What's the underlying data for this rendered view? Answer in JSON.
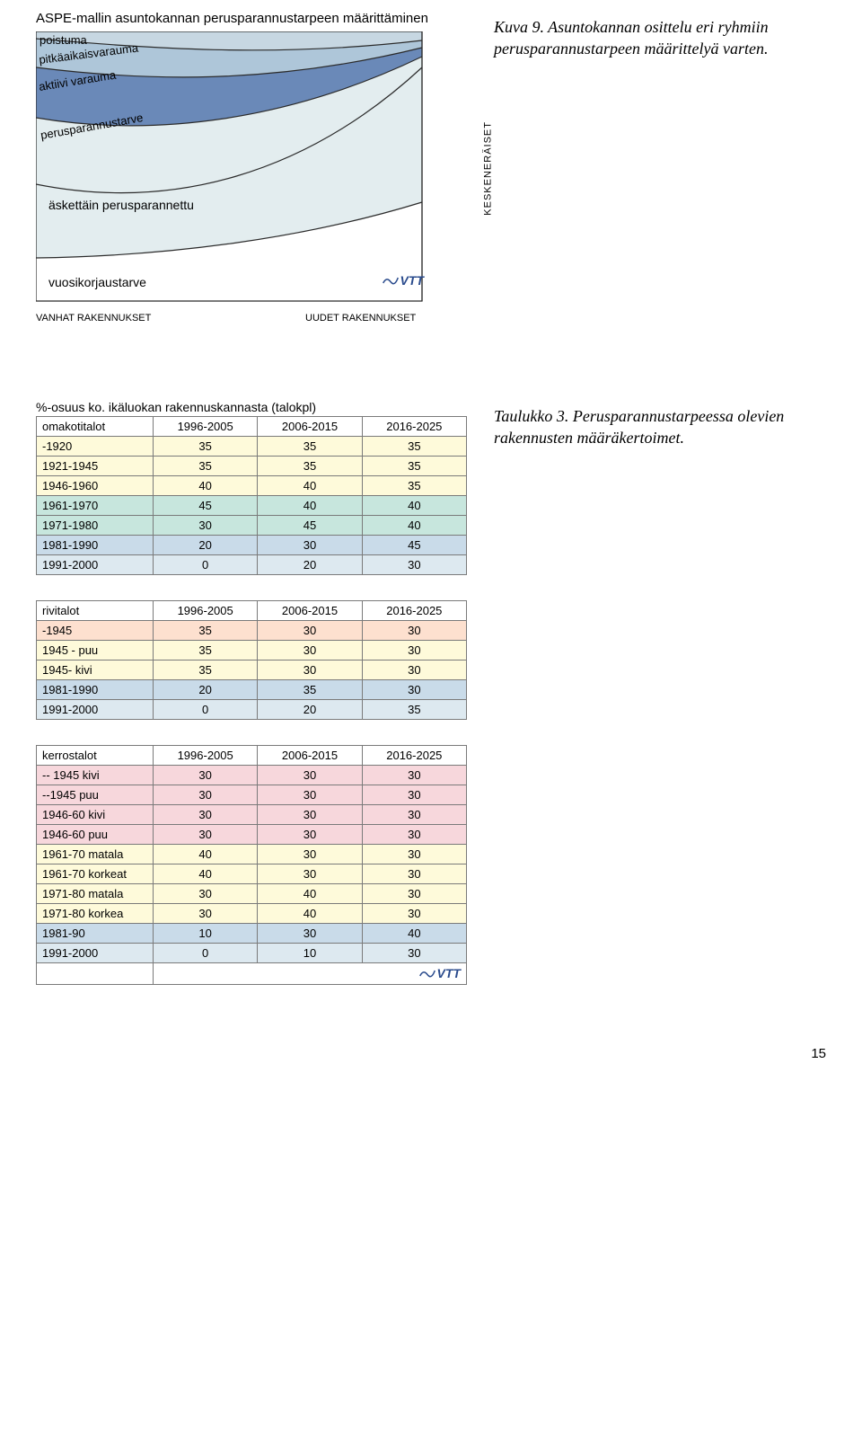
{
  "diagram": {
    "title": "ASPE-mallin asuntokannan perusparannustarpeen määrittäminen",
    "labels": {
      "poistuma": "poistuma",
      "pitka": "pitkäaikaisvarauma",
      "aktiivi": "aktiivi varauma",
      "peruspar": "perusparannustarve",
      "askettain": "äskettäin perusparannettu",
      "vuosikorjaus": "vuosikorjaustarve",
      "side": "KESKENERÄISET",
      "xleft": "VANHAT RAKENNUKSET",
      "xright": "UUDET RAKENNUKSET"
    },
    "colors": {
      "band_poistuma": "#c7d7e2",
      "band_pitka": "#aec6d9",
      "band_aktiivi": "#6a89b8",
      "band_peruspar": "#e3edef",
      "band_bottom": "#ffffff",
      "stroke": "#2b2b2b"
    }
  },
  "caption_fig": "Kuva 9. Asuntokannan osittelu eri ryhmiin perusparannustarpeen määrittelyä varten.",
  "caption_tab": "Taulukko 3. Perusparannustarpeessa olevien rakennusten määräkertoimet.",
  "tables_intro": "%-osuus ko. ikäluokan rakennuskannasta (talokpl)",
  "table1": {
    "header": [
      "omakotitalot",
      "1996-2005",
      "2006-2015",
      "2016-2025"
    ],
    "rows": [
      {
        "label": "-1920",
        "vals": [
          "35",
          "35",
          "35"
        ],
        "bg": "#fefada"
      },
      {
        "label": "1921-1945",
        "vals": [
          "35",
          "35",
          "35"
        ],
        "bg": "#fefada"
      },
      {
        "label": "1946-1960",
        "vals": [
          "40",
          "40",
          "35"
        ],
        "bg": "#fefada"
      },
      {
        "label": "1961-1970",
        "vals": [
          "45",
          "40",
          "40"
        ],
        "bg": "#c7e6dd"
      },
      {
        "label": "1971-1980",
        "vals": [
          "30",
          "45",
          "40"
        ],
        "bg": "#c7e6dd"
      },
      {
        "label": "1981-1990",
        "vals": [
          "20",
          "30",
          "45"
        ],
        "bg": "#c9dbe9"
      },
      {
        "label": "1991-2000",
        "vals": [
          "0",
          "20",
          "30"
        ],
        "bg": "#dde9f0"
      }
    ]
  },
  "table2": {
    "header": [
      "rivitalot",
      "1996-2005",
      "2006-2015",
      "2016-2025"
    ],
    "rows": [
      {
        "label": "-1945",
        "vals": [
          "35",
          "30",
          "30"
        ],
        "bg": "#fde0cf"
      },
      {
        "label": "1945 - puu",
        "vals": [
          "35",
          "30",
          "30"
        ],
        "bg": "#fefada"
      },
      {
        "label": "1945- kivi",
        "vals": [
          "35",
          "30",
          "30"
        ],
        "bg": "#fefada"
      },
      {
        "label": "1981-1990",
        "vals": [
          "20",
          "35",
          "30"
        ],
        "bg": "#c9dbe9"
      },
      {
        "label": "1991-2000",
        "vals": [
          "0",
          "20",
          "35"
        ],
        "bg": "#dde9f0"
      }
    ]
  },
  "table3": {
    "header": [
      "kerrostalot",
      "1996-2005",
      "2006-2015",
      "2016-2025"
    ],
    "rows": [
      {
        "label": "-- 1945 kivi",
        "vals": [
          "30",
          "30",
          "30"
        ],
        "bg": "#f7d7dc"
      },
      {
        "label": "--1945 puu",
        "vals": [
          "30",
          "30",
          "30"
        ],
        "bg": "#f7d7dc"
      },
      {
        "label": "1946-60 kivi",
        "vals": [
          "30",
          "30",
          "30"
        ],
        "bg": "#f7d7dc"
      },
      {
        "label": "1946-60 puu",
        "vals": [
          "30",
          "30",
          "30"
        ],
        "bg": "#f7d7dc"
      },
      {
        "label": "1961-70 matala",
        "vals": [
          "40",
          "30",
          "30"
        ],
        "bg": "#fefada"
      },
      {
        "label": "1961-70 korkeat",
        "vals": [
          "40",
          "30",
          "30"
        ],
        "bg": "#fefada"
      },
      {
        "label": "1971-80 matala",
        "vals": [
          "30",
          "40",
          "30"
        ],
        "bg": "#fefada"
      },
      {
        "label": "1971-80 korkea",
        "vals": [
          "30",
          "40",
          "30"
        ],
        "bg": "#fefada"
      },
      {
        "label": "1981-90",
        "vals": [
          "10",
          "30",
          "40"
        ],
        "bg": "#c9dbe9"
      },
      {
        "label": "1991-2000",
        "vals": [
          "0",
          "10",
          "30"
        ],
        "bg": "#dde9f0"
      }
    ]
  },
  "page_number": "15",
  "brand": "VTT"
}
